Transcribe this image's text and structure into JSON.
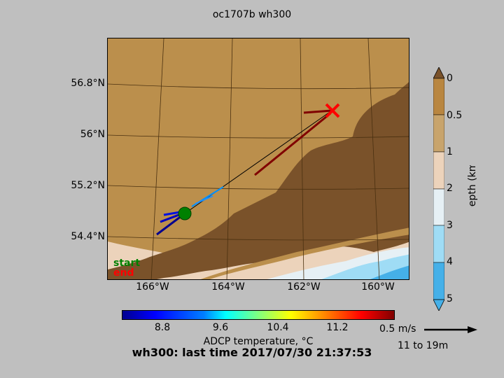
{
  "title": "oc1707b wh300",
  "status_line": "wh300: last time 2017/07/30 21:37:53",
  "map": {
    "lat_labels": [
      "56.8°N",
      "56°N",
      "55.2°N",
      "54.4°N"
    ],
    "lon_labels": [
      "166°W",
      "164°W",
      "162°W",
      "160°W"
    ],
    "start_marker_color": "#008000",
    "end_marker_color": "#ff0000"
  },
  "depth_colorbar": {
    "label": "Depth (km)",
    "ticks": [
      "0",
      "0.5",
      "1",
      "2",
      "3",
      "4",
      "5"
    ],
    "colors": [
      "#b98640",
      "#c8a46c",
      "#ecd3bb",
      "#e6f0f5",
      "#9fdcf5",
      "#45b0e8"
    ]
  },
  "temperature_colorbar": {
    "label": "ADCP temperature, °C",
    "ticks": [
      "8.8",
      "9.6",
      "10.4",
      "11.2"
    ]
  },
  "scale": {
    "label": "0.5 m/s",
    "depth_range": "11 to 19m"
  },
  "legend": {
    "start": "start",
    "end": "end",
    "start_color": "#008000",
    "end_color": "#ff0000"
  }
}
